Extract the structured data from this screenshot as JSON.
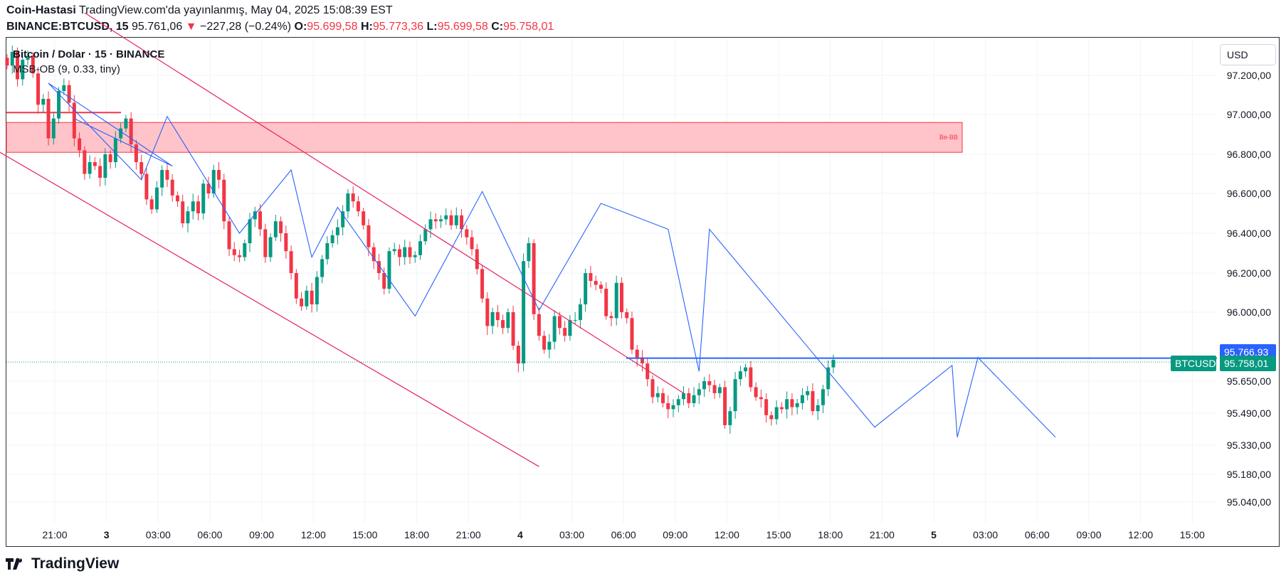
{
  "header": {
    "author": "Coin-Hastasi",
    "published": "TradingView.com'da yayınlanmış, May 04, 2025 15:08:39 EST",
    "symbol": "BINANCE:BTCUSD, 15",
    "last": "95.761,06",
    "change": "−227,28 (−0.24%)",
    "o_label": "O:",
    "o": "95.699,58",
    "h_label": "H:",
    "h": "95.773,36",
    "l_label": "L:",
    "l": "95.699,58",
    "c_label": "C:",
    "c": "95.758,01"
  },
  "legend": {
    "instrument": "Bitcoin / Dolar · 15 · BINANCE",
    "indicator": "MSB-OB (9, 0.33, tiny)"
  },
  "currency_button": "USD",
  "price_tags": {
    "symbol_tag": "BTCUSD",
    "high_tag": "95.766,93",
    "last_tag": "95.758,01"
  },
  "ob_box_label": "Be-BB",
  "brand": "TradingView",
  "colors": {
    "up": "#089981",
    "down": "#f23645",
    "channel": "#e91e63",
    "zigzag": "#2962ff",
    "ob_fill": "#ffc4c9",
    "tag_blue": "#2962ff",
    "tag_green": "#089981"
  },
  "chart_data": {
    "type": "candlestick",
    "symbol": "BTCUSD",
    "interval": "15",
    "y_ticks": [
      97200,
      97000,
      96800,
      96600,
      96400,
      96200,
      96000,
      95650,
      95490,
      95330,
      95180,
      95040
    ],
    "y_tick_labels": [
      "97.200,00",
      "97.000,00",
      "96.800,00",
      "96.600,00",
      "96.400,00",
      "96.200,00",
      "96.000,00",
      "95.650,00",
      "95.490,00",
      "95.330,00",
      "95.180,00",
      "95.040,00"
    ],
    "x_tick_labels": [
      "21:00",
      "3",
      "03:00",
      "06:00",
      "09:00",
      "12:00",
      "15:00",
      "18:00",
      "21:00",
      "4",
      "03:00",
      "06:00",
      "09:00",
      "12:00",
      "15:00",
      "18:00",
      "21:00",
      "5",
      "03:00",
      "06:00",
      "09:00",
      "12:00",
      "15:00"
    ],
    "x_bold_labels": [
      "3",
      "4",
      "5"
    ],
    "start_time": "May 2 19:00",
    "interval_minutes": 15,
    "series": [
      {
        "name": "BTCUSD",
        "closes": [
          97250,
          97320,
          97180,
          97280,
          97300,
          97210,
          97050,
          97080,
          96880,
          96980,
          97120,
          97150,
          97060,
          96880,
          96820,
          96700,
          96760,
          96740,
          96680,
          96800,
          96760,
          96880,
          96930,
          96980,
          96850,
          96760,
          96700,
          96570,
          96520,
          96630,
          96720,
          96670,
          96590,
          96560,
          96450,
          96510,
          96560,
          96500,
          96650,
          96600,
          96720,
          96670,
          96460,
          96320,
          96290,
          96280,
          96350,
          96470,
          96510,
          96420,
          96280,
          96380,
          96460,
          96400,
          96310,
          96200,
          96070,
          96030,
          96110,
          96040,
          96180,
          96270,
          96350,
          96390,
          96430,
          96510,
          96600,
          96560,
          96510,
          96440,
          96330,
          96260,
          96200,
          96120,
          96310,
          96320,
          96280,
          96330,
          96280,
          96290,
          96360,
          96420,
          96470,
          96460,
          96470,
          96490,
          96440,
          96490,
          96420,
          96380,
          96320,
          96220,
          96070,
          95930,
          96000,
          95960,
          95920,
          96000,
          95830,
          95740,
          96260,
          96350,
          95990,
          95880,
          95810,
          95850,
          95980,
          95920,
          95880,
          95960,
          95960,
          96040,
          96200,
          96160,
          96140,
          96120,
          95980,
          95970,
          96150,
          96000,
          95970,
          95810,
          95770,
          95740,
          95660,
          95570,
          95590,
          95540,
          95510,
          95530,
          95560,
          95590,
          95540,
          95580,
          95610,
          95650,
          95630,
          95590,
          95620,
          95430,
          95500,
          95660,
          95700,
          95720,
          95620,
          95570,
          95560,
          95480,
          95460,
          95520,
          95510,
          95560,
          95520,
          95540,
          95580,
          95600,
          95500,
          95530,
          95610,
          95720,
          95758
        ]
      }
    ],
    "channel_upper": {
      "from": [
        "May 2 22:45",
        97520
      ],
      "to": [
        "May 4 03:45",
        95590
      ]
    },
    "channel_lower": {
      "from": [
        "May 2 17:30",
        96880
      ],
      "to": [
        "May 3 20:45",
        95220
      ]
    },
    "zigzag": [
      [
        96980,
        "May 2 22:15"
      ],
      [
        96740,
        "May 3 03:00"
      ],
      [
        97160,
        "May 2 21:00"
      ],
      [
        96670,
        "May 3 01:30"
      ],
      [
        96990,
        "May 3 02:45"
      ],
      [
        96400,
        "May 3 06:15"
      ],
      [
        96720,
        "May 3 08:45"
      ],
      [
        96280,
        "May 3 09:45"
      ],
      [
        96530,
        "May 3 11:00"
      ],
      [
        95980,
        "May 3 14:45"
      ],
      [
        96610,
        "May 3 18:00"
      ],
      [
        96010,
        "May 3 20:45"
      ],
      [
        96550,
        "May 3 23:45"
      ],
      [
        96420,
        "May 4 03:00"
      ],
      [
        95700,
        "May 4 04:30"
      ],
      [
        96420,
        "May 4 05:00"
      ],
      [
        95420,
        "May 4 13:00"
      ],
      [
        95730,
        "May 4 16:45"
      ],
      [
        95370,
        "May 4 17:00"
      ],
      [
        95770,
        "May 4 18:00"
      ],
      [
        95370,
        "May 4 21:45"
      ]
    ],
    "ob_zone": {
      "top": 96960,
      "bottom": 96810,
      "label": "Be-BB"
    },
    "ob_line_left": 97010,
    "level_line": 95766.93,
    "last_price": 95758.01,
    "high_price": 95766.93
  }
}
